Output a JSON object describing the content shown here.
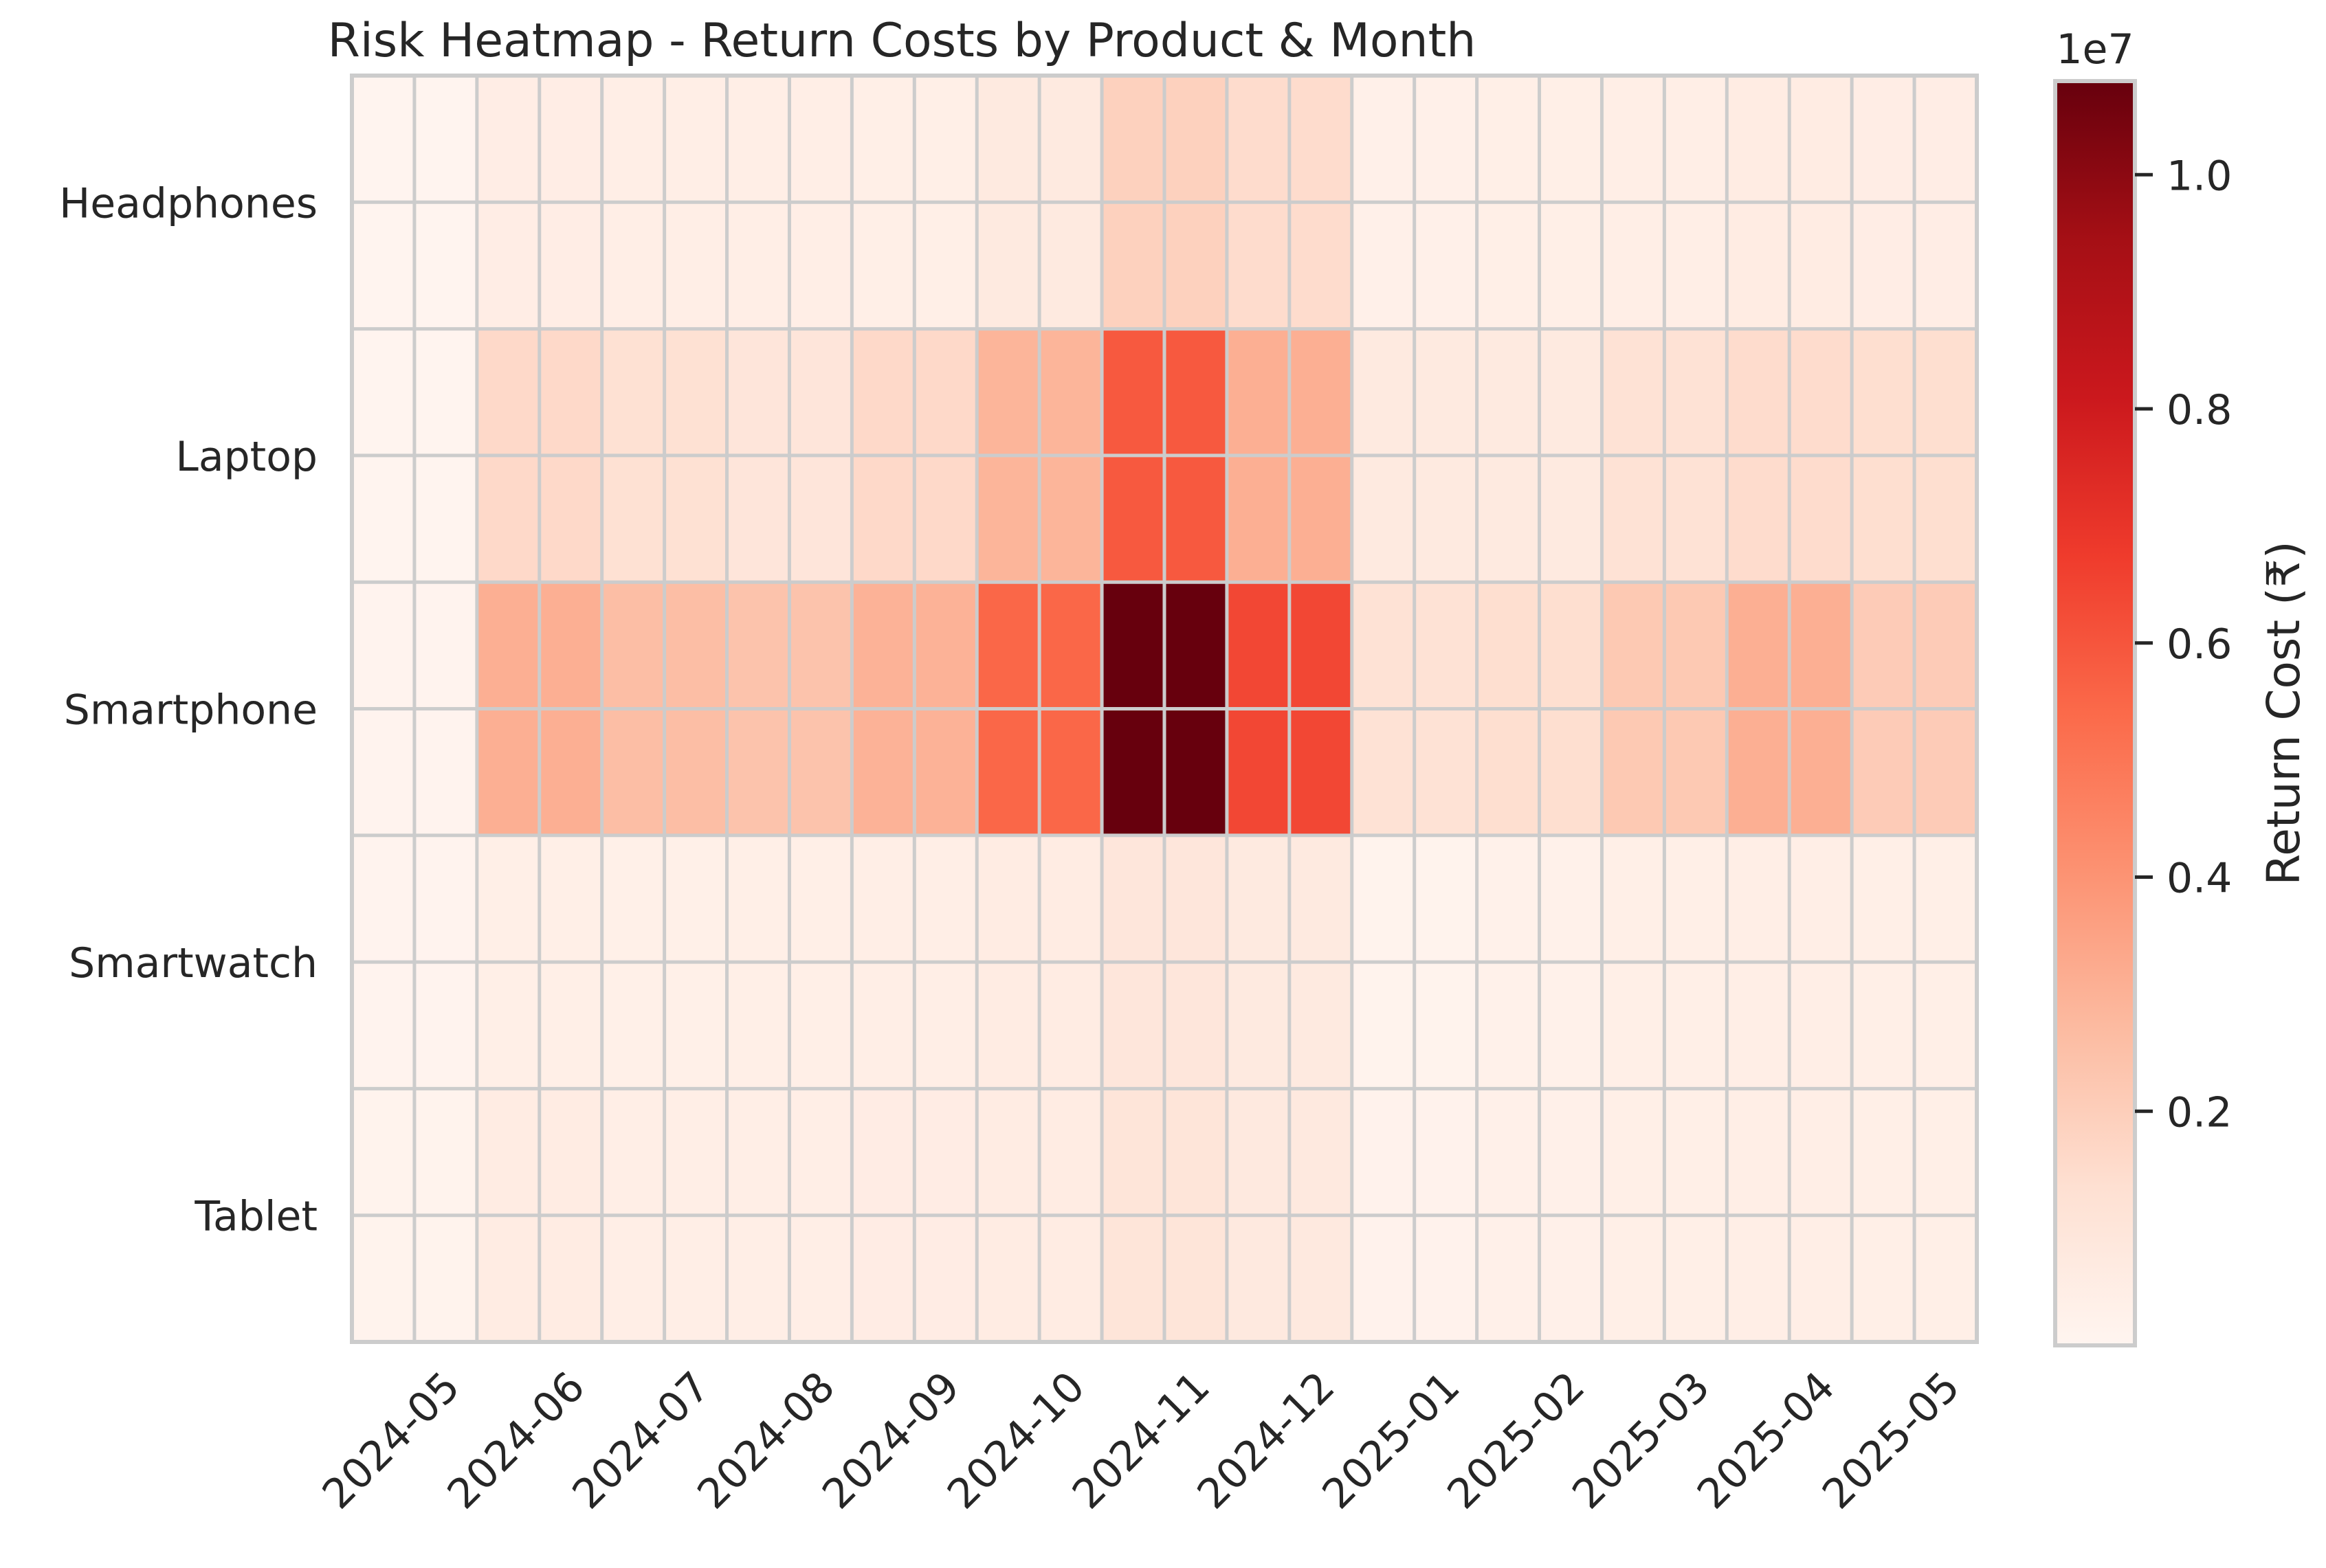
{
  "chart_data": {
    "type": "heatmap",
    "title": "Risk Heatmap - Return Costs by Product & Month",
    "xlabel": "",
    "ylabel": "",
    "colormap": "Reds",
    "colormap_stops": [
      "#fff5f0",
      "#fee0d2",
      "#fcbba1",
      "#fc9272",
      "#fb6a4a",
      "#ef3b2c",
      "#cb181d",
      "#a50f15",
      "#67000d"
    ],
    "rows": [
      "Headphones",
      "Laptop",
      "Smartphone",
      "Smartwatch",
      "Tablet"
    ],
    "columns": [
      "2024-05",
      "2024-06",
      "2024-07",
      "2024-08",
      "2024-09",
      "2024-10",
      "2024-11",
      "2024-12",
      "2025-01",
      "2025-02",
      "2025-03",
      "2025-04",
      "2025-05"
    ],
    "values": [
      [
        0.05,
        0.5,
        0.45,
        0.45,
        0.4,
        0.7,
        1.9,
        1.5,
        0.3,
        0.4,
        0.45,
        0.6,
        0.5
      ],
      [
        0.05,
        1.6,
        1.3,
        1.0,
        1.6,
        2.9,
        5.9,
        3.1,
        0.7,
        0.7,
        1.2,
        1.5,
        1.4
      ],
      [
        0.1,
        3.1,
        2.6,
        2.4,
        3.0,
        5.5,
        10.8,
        6.4,
        1.2,
        1.4,
        2.2,
        3.1,
        2.1
      ],
      [
        0.1,
        0.4,
        0.35,
        0.4,
        0.45,
        0.6,
        0.95,
        0.7,
        0.15,
        0.25,
        0.4,
        0.45,
        0.4
      ],
      [
        0.15,
        0.6,
        0.45,
        0.45,
        0.55,
        0.6,
        1.05,
        0.75,
        0.2,
        0.3,
        0.4,
        0.45,
        0.4
      ]
    ],
    "value_unit_multiplier": "1e7",
    "vmin": 0.0,
    "vmax": 10.8,
    "colorbar": {
      "label": "Return Cost (₹)",
      "offset_label": "1e7",
      "ticks": [
        0.2,
        0.4,
        0.6,
        0.8,
        1.0
      ],
      "tick_labels": [
        "0.2",
        "0.4",
        "0.6",
        "0.8",
        "1.0"
      ]
    },
    "grid": true,
    "frame_color": "#cccccc"
  }
}
